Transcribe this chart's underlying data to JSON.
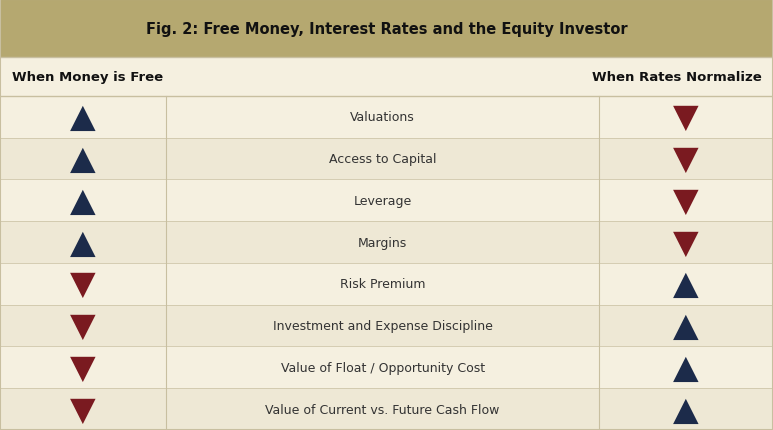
{
  "title_prefix": "Fig. 2: ",
  "title_bold": "Free Money, Interest Rates and the Equity Investor",
  "header_bg": "#b5a870",
  "left_header": "When Money is Free",
  "right_header": "When Rates Normalize",
  "rows": [
    {
      "label": "Valuations",
      "left_up": true,
      "right_up": false
    },
    {
      "label": "Access to Capital",
      "left_up": true,
      "right_up": false
    },
    {
      "label": "Leverage",
      "left_up": true,
      "right_up": false
    },
    {
      "label": "Margins",
      "left_up": true,
      "right_up": false
    },
    {
      "label": "Risk Premium",
      "left_up": false,
      "right_up": true
    },
    {
      "label": "Investment and Expense Discipline",
      "left_up": false,
      "right_up": true
    },
    {
      "label": "Value of Float / Opportunity Cost",
      "left_up": false,
      "right_up": true
    },
    {
      "label": "Value of Current vs. Future Cash Flow",
      "left_up": false,
      "right_up": true
    }
  ],
  "row_bg_light": "#f5f0e0",
  "row_bg_dark": "#eee8d5",
  "navy": "#1c2b4a",
  "dark_red": "#7a1a20",
  "border_color": "#c8bfa0",
  "fig_width": 7.73,
  "fig_height": 4.31,
  "dpi": 100
}
